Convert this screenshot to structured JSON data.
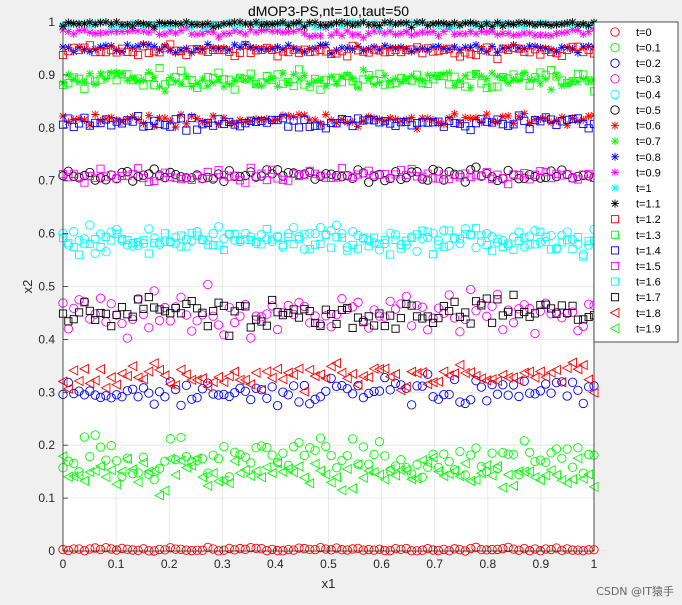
{
  "watermark": "CSDN @IT猿手",
  "chart_data": {
    "type": "scatter",
    "title": "dMOP3-PS,nt=10,taut=50",
    "xlabel": "x1",
    "ylabel": "x2",
    "xlim": [
      0,
      1
    ],
    "ylim": [
      0,
      1
    ],
    "xticks": [
      "0",
      "0.1",
      "0.2",
      "0.3",
      "0.4",
      "0.5",
      "0.6",
      "0.7",
      "0.8",
      "0.9",
      "1"
    ],
    "yticks": [
      "0",
      "0.1",
      "0.2",
      "0.3",
      "0.4",
      "0.5",
      "0.6",
      "0.7",
      "0.8",
      "0.9",
      "1"
    ],
    "grid": true,
    "legend_position": "top-right, outside",
    "points_per_series": 100,
    "series": [
      {
        "name": "t=0",
        "marker": "circle",
        "color": "#ff0000",
        "x2_center": 0.003,
        "x2_spread": 0.002
      },
      {
        "name": "t=0.1",
        "marker": "circle",
        "color": "#00ff00",
        "x2_center": 0.175,
        "x2_spread": 0.02
      },
      {
        "name": "t=0.2",
        "marker": "circle",
        "color": "#0000ff",
        "x2_center": 0.3,
        "x2_spread": 0.012
      },
      {
        "name": "t=0.3",
        "marker": "circle",
        "color": "#ff00ff",
        "x2_center": 0.45,
        "x2_spread": 0.02
      },
      {
        "name": "t=0.4",
        "marker": "circle",
        "color": "#00ffff",
        "x2_center": 0.59,
        "x2_spread": 0.012
      },
      {
        "name": "t=0.5",
        "marker": "circle",
        "color": "#000000",
        "x2_center": 0.71,
        "x2_spread": 0.006
      },
      {
        "name": "t=0.6",
        "marker": "asterisk",
        "color": "#ff0000",
        "x2_center": 0.815,
        "x2_spread": 0.006
      },
      {
        "name": "t=0.7",
        "marker": "asterisk",
        "color": "#00ff00",
        "x2_center": 0.89,
        "x2_spread": 0.008
      },
      {
        "name": "t=0.8",
        "marker": "asterisk",
        "color": "#0000ff",
        "x2_center": 0.95,
        "x2_spread": 0.004
      },
      {
        "name": "t=0.9",
        "marker": "asterisk",
        "color": "#ff00ff",
        "x2_center": 0.98,
        "x2_spread": 0.004
      },
      {
        "name": "t=1",
        "marker": "asterisk",
        "color": "#00ffff",
        "x2_center": 0.995,
        "x2_spread": 0.003
      },
      {
        "name": "t=1.1",
        "marker": "asterisk",
        "color": "#000000",
        "x2_center": 0.997,
        "x2_spread": 0.003
      },
      {
        "name": "t=1.2",
        "marker": "square",
        "color": "#ff0000",
        "x2_center": 0.945,
        "x2_spread": 0.005
      },
      {
        "name": "t=1.3",
        "marker": "square",
        "color": "#00ff00",
        "x2_center": 0.89,
        "x2_spread": 0.008
      },
      {
        "name": "t=1.4",
        "marker": "square",
        "color": "#0000ff",
        "x2_center": 0.81,
        "x2_spread": 0.006
      },
      {
        "name": "t=1.5",
        "marker": "square",
        "color": "#ff00ff",
        "x2_center": 0.71,
        "x2_spread": 0.006
      },
      {
        "name": "t=1.6",
        "marker": "square",
        "color": "#00ffff",
        "x2_center": 0.585,
        "x2_spread": 0.012
      },
      {
        "name": "t=1.7",
        "marker": "square",
        "color": "#000000",
        "x2_center": 0.45,
        "x2_spread": 0.015
      },
      {
        "name": "t=1.8",
        "marker": "triangle-left",
        "color": "#ff0000",
        "x2_center": 0.33,
        "x2_spread": 0.012
      },
      {
        "name": "t=1.9",
        "marker": "triangle-left",
        "color": "#00ff00",
        "x2_center": 0.145,
        "x2_spread": 0.015
      }
    ]
  }
}
